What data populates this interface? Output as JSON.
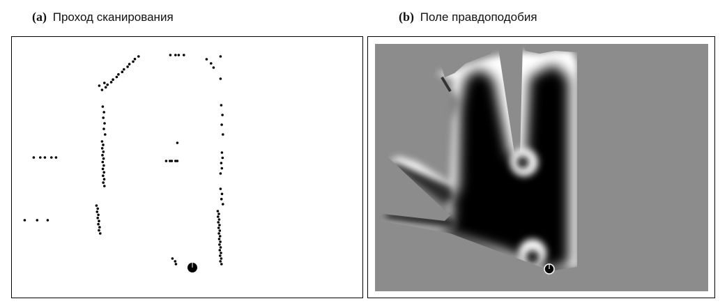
{
  "figure": {
    "panel_a": {
      "tag": "(a)",
      "title": "Проход сканирования"
    },
    "panel_b": {
      "tag": "(b)",
      "title": "Поле правдоподобия"
    }
  },
  "colors": {
    "background": "#ffffff",
    "scan_points": "#000000",
    "unknown_gray": "#8c8c8c",
    "free_black": "#000000",
    "obstacle_white": "#ffffff"
  },
  "icons": {
    "robot_a": "robot-pose-icon",
    "robot_b": "robot-pose-icon"
  }
}
